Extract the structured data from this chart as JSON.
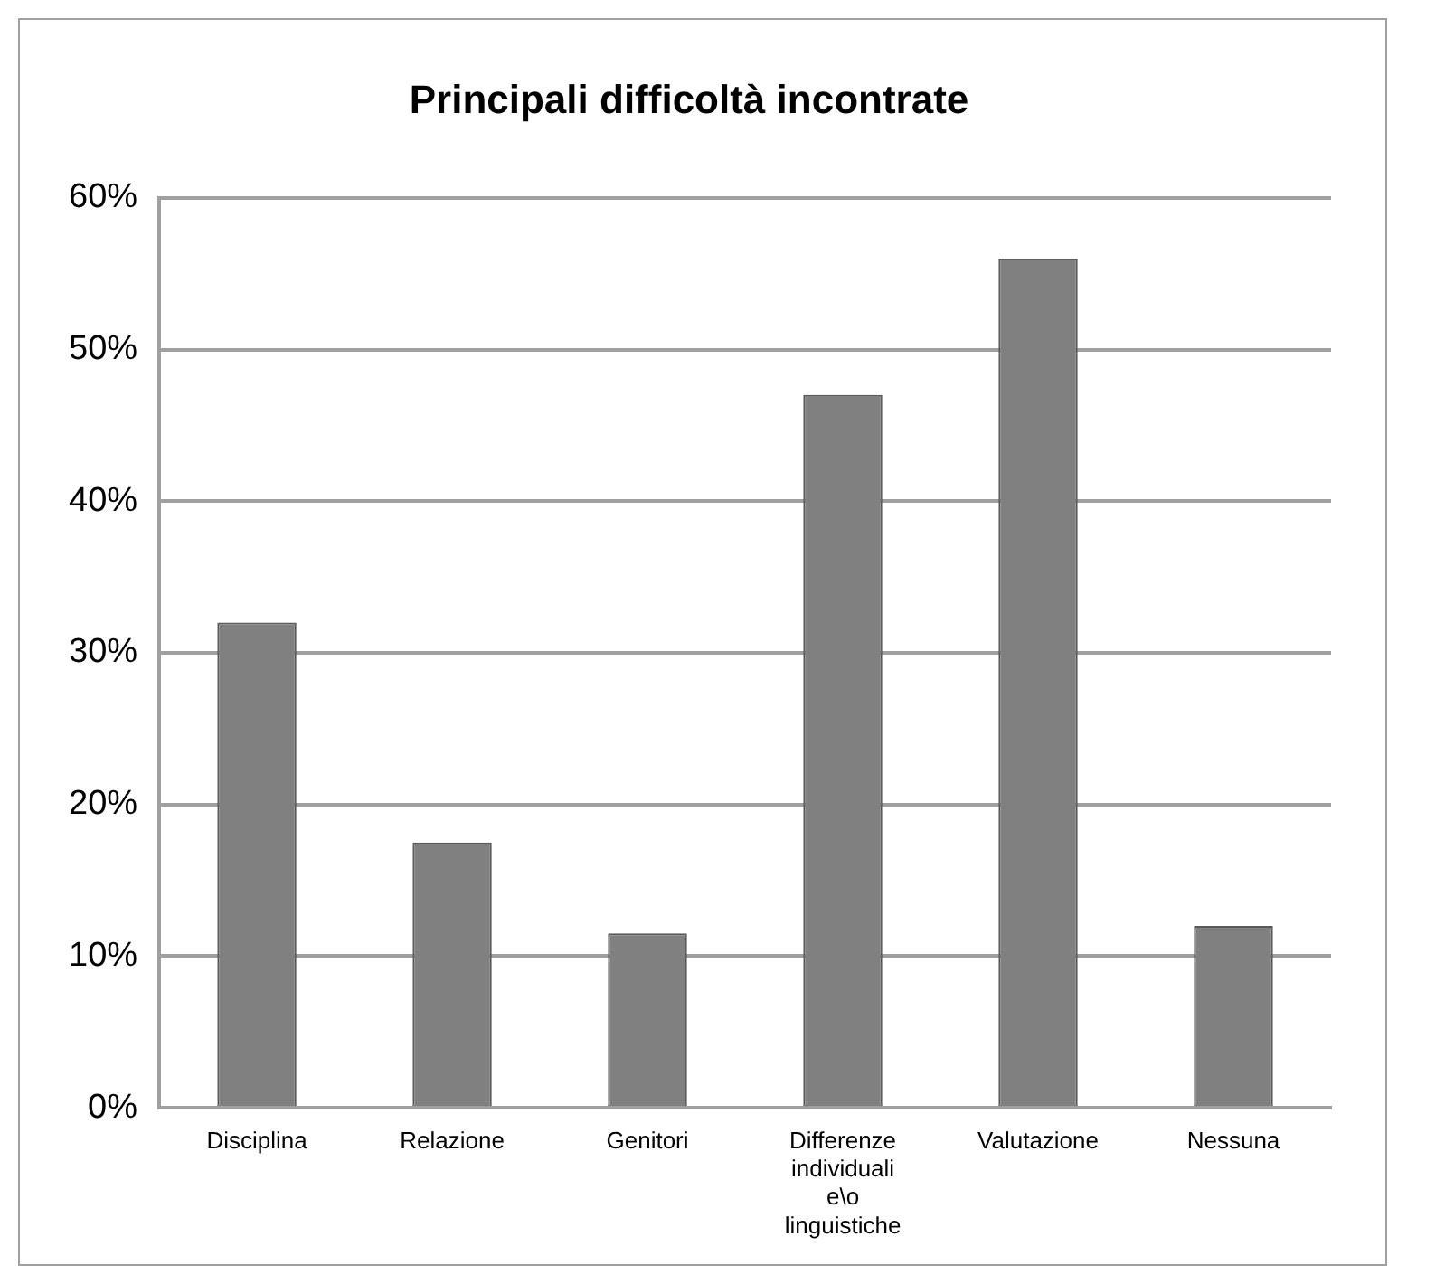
{
  "chart_data": {
    "type": "bar",
    "title": "Principali difficoltà incontrate",
    "categories": [
      "Disciplina",
      "Relazione",
      "Genitori",
      "Differenze individuali e\\o linguistiche",
      "Valutazione",
      "Nessuna"
    ],
    "values": [
      32,
      17.5,
      11.5,
      47,
      56,
      12
    ],
    "color": "#808080",
    "ylim": [
      0,
      60
    ],
    "yticks": [
      {
        "value": 0,
        "label": "0%"
      },
      {
        "value": 10,
        "label": "10%"
      },
      {
        "value": 20,
        "label": "20%"
      },
      {
        "value": 30,
        "label": "30%"
      },
      {
        "value": 40,
        "label": "40%"
      },
      {
        "value": 50,
        "label": "50%"
      },
      {
        "value": 60,
        "label": "60%"
      }
    ],
    "grid": "y",
    "legend": false
  }
}
